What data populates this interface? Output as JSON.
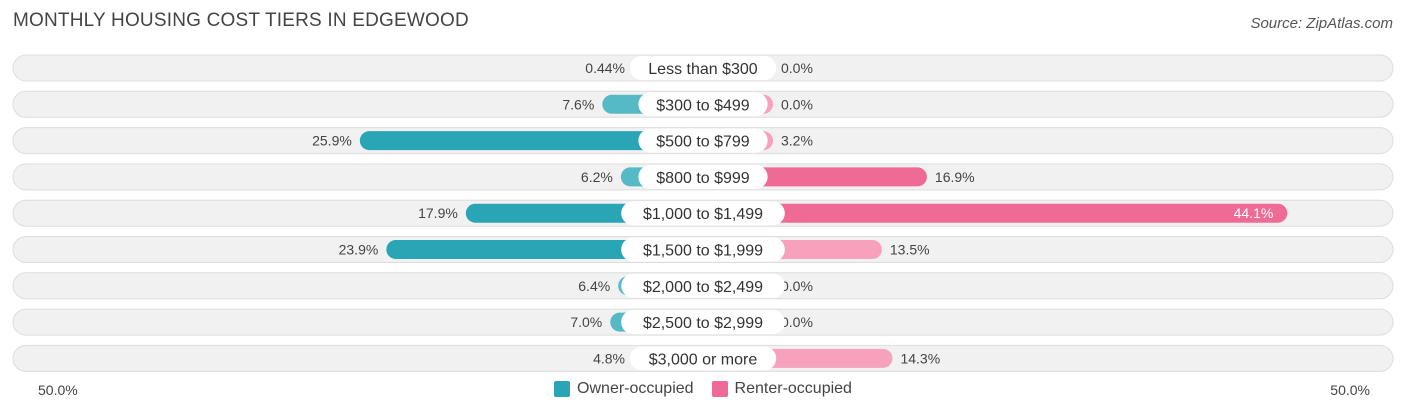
{
  "title": "MONTHLY HOUSING COST TIERS IN EDGEWOOD",
  "source": "Source: ZipAtlas.com",
  "colors": {
    "owner": "#56b9c6",
    "owner_strong": "#2aa5b5",
    "renter": "#f7a2bd",
    "renter_strong": "#f06a96",
    "row_bg": "#f1f1f1",
    "row_border": "#dddddd"
  },
  "legend": {
    "owner_label": "Owner-occupied",
    "renter_label": "Renter-occupied"
  },
  "axis": {
    "left_label": "50.0%",
    "right_label": "50.0%"
  },
  "chart_data": {
    "type": "bar",
    "orientation": "horizontal-diverging",
    "max": 50.0,
    "categories": [
      "Less than $300",
      "$300 to $499",
      "$500 to $799",
      "$800 to $999",
      "$1,000 to $1,499",
      "$1,500 to $1,999",
      "$2,000 to $2,499",
      "$2,500 to $2,999",
      "$3,000 or more"
    ],
    "series": [
      {
        "name": "Owner-occupied",
        "values": [
          0.44,
          7.6,
          25.9,
          6.2,
          17.9,
          23.9,
          6.4,
          7.0,
          4.8
        ],
        "labels": [
          "0.44%",
          "7.6%",
          "25.9%",
          "6.2%",
          "17.9%",
          "23.9%",
          "6.4%",
          "7.0%",
          "4.8%"
        ]
      },
      {
        "name": "Renter-occupied",
        "values": [
          0.0,
          0.0,
          3.2,
          16.9,
          44.1,
          13.5,
          0.0,
          0.0,
          14.3
        ],
        "labels": [
          "0.0%",
          "0.0%",
          "3.2%",
          "16.9%",
          "44.1%",
          "13.5%",
          "0.0%",
          "0.0%",
          "14.3%"
        ]
      }
    ]
  }
}
